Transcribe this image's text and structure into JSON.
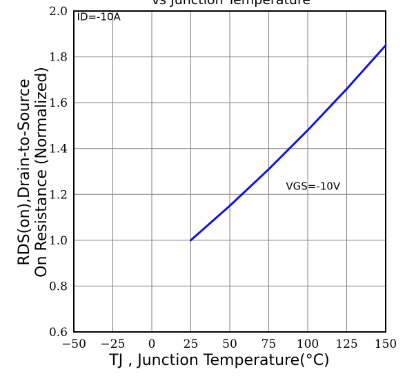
{
  "chart_data": {
    "type": "line",
    "title": "vs Junction Temperature",
    "xlabel": "TJ , Junction Temperature(°C)",
    "ylabel_lines": [
      "RDS(on),Drain-to-Source",
      "On Resistance (Normalized)"
    ],
    "xlim": [
      -50,
      150
    ],
    "ylim": [
      0.6,
      2.0
    ],
    "x_ticks": [
      -50,
      -25,
      0,
      25,
      50,
      75,
      100,
      125,
      150
    ],
    "y_ticks": [
      0.6,
      0.8,
      1.0,
      1.2,
      1.4,
      1.6,
      1.8,
      2.0
    ],
    "x_tick_labels": [
      "−50",
      "−25",
      "0",
      "25",
      "50",
      "75",
      "100",
      "125",
      "150"
    ],
    "y_tick_labels": [
      "0.6",
      "0.8",
      "1.0",
      "1.2",
      "1.4",
      "1.6",
      "1.8",
      "2.0"
    ],
    "grid": true,
    "series": [
      {
        "x": [
          25,
          50,
          75,
          100,
          125,
          150
        ],
        "y": [
          1.0,
          1.15,
          1.31,
          1.48,
          1.66,
          1.85
        ],
        "color": "#1010e0"
      }
    ],
    "annotations": [
      {
        "text": "ID=-10A",
        "x": -48,
        "y": 1.96
      },
      {
        "text": "VGS=-10V",
        "x": 86,
        "y": 1.22
      }
    ]
  },
  "colors": {
    "grid": "#808080",
    "axes": "#000000",
    "line": "#1010e0"
  }
}
